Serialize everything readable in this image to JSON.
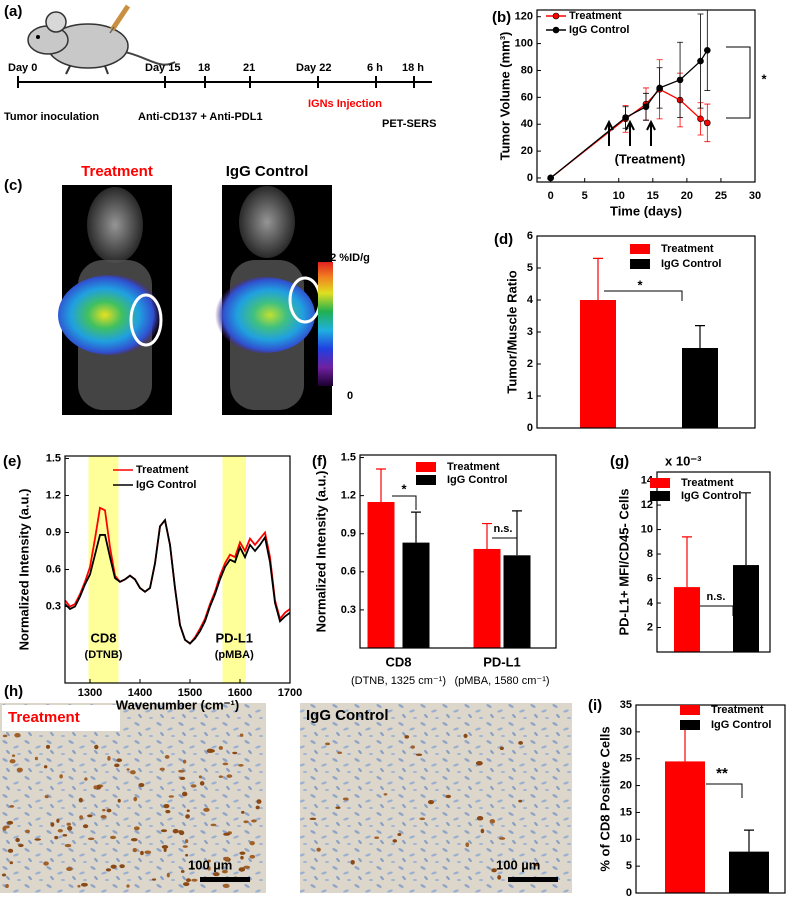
{
  "timeline": {
    "label": "(a)",
    "days": [
      "Day 0",
      "Day 15",
      "18",
      "21",
      "Day 22",
      "6 h",
      "18 h"
    ],
    "steps": [
      "Tumor inoculation",
      "Anti-CD137 + Anti-PDL1",
      "IGNs Injection",
      "PET-SERS"
    ]
  },
  "pet": {
    "label": "(c)",
    "titles": [
      "Treatment",
      "IgG Control"
    ],
    "scale_max": "2 %ID/g",
    "scale_min": "0"
  },
  "histology": {
    "label": "(h)",
    "titles": [
      "Treatment",
      "IgG Control"
    ],
    "scale_bar": "100 µm"
  },
  "chart_data": [
    {
      "type": "line",
      "label": "(b)",
      "xlabel": "Time (days)",
      "ylabel": "Tumor Volume (mm³)",
      "xlim": [
        -2,
        30
      ],
      "ylim": [
        -3,
        125
      ],
      "xticks": [
        0,
        5,
        10,
        15,
        20,
        25,
        30
      ],
      "yticks": [
        0,
        20,
        40,
        60,
        80,
        100,
        120
      ],
      "markers": true,
      "x": [
        0,
        11,
        14,
        16,
        19,
        22,
        23
      ],
      "series": [
        {
          "name": "Treatment",
          "color": "#ff0000",
          "values": [
            0,
            44,
            55,
            66,
            58,
            44,
            41
          ],
          "errors": [
            0,
            10,
            12,
            22,
            20,
            12,
            14
          ]
        },
        {
          "name": "IgG Control",
          "color": "#000000",
          "values": [
            0,
            45,
            53,
            67,
            73,
            87,
            95
          ],
          "errors": [
            0,
            8,
            10,
            15,
            28,
            35,
            30
          ]
        }
      ],
      "significance": [
        "*"
      ],
      "note": "(Treatment)"
    },
    {
      "type": "bar",
      "label": "(d)",
      "ylabel": "Tumor/Muscle Ratio",
      "ylim": [
        0,
        6
      ],
      "yticks": [
        0,
        1,
        2,
        3,
        4,
        5,
        6
      ],
      "series": [
        {
          "name": "Treatment",
          "color": "#ff0000",
          "values": [
            4.0
          ],
          "errors": [
            1.3
          ]
        },
        {
          "name": "IgG Control",
          "color": "#000000",
          "values": [
            2.5
          ],
          "errors": [
            0.7
          ]
        }
      ],
      "significance": [
        "*"
      ]
    },
    {
      "type": "line",
      "label": "(e)",
      "xlabel": "Wavenumber (cm⁻¹)",
      "ylabel": "Normalized Intensity (a.u.)",
      "xlim": [
        1250,
        1700
      ],
      "ylim": [
        -0.32,
        1.52
      ],
      "xticks": [
        1300,
        1400,
        1500,
        1600,
        1700
      ],
      "yticks": [
        0.3,
        0.6,
        0.9,
        1.2,
        1.5
      ],
      "highlights": [
        [
          1297,
          1357
        ],
        [
          1565,
          1612
        ]
      ],
      "band_labels": [
        "CD8",
        "PD-L1"
      ],
      "band_notes": [
        "(DTNB)",
        "(pMBA)"
      ],
      "x": [
        1250,
        1260,
        1270,
        1280,
        1290,
        1300,
        1310,
        1320,
        1330,
        1340,
        1350,
        1360,
        1370,
        1380,
        1390,
        1400,
        1410,
        1420,
        1430,
        1440,
        1450,
        1460,
        1470,
        1480,
        1490,
        1500,
        1510,
        1520,
        1530,
        1540,
        1550,
        1560,
        1570,
        1580,
        1590,
        1600,
        1610,
        1620,
        1630,
        1640,
        1650,
        1660,
        1670,
        1680,
        1690,
        1700
      ],
      "series": [
        {
          "name": "Treatment",
          "color": "#ff0000",
          "values": [
            0.35,
            0.3,
            0.32,
            0.4,
            0.5,
            0.62,
            0.85,
            1.1,
            1.08,
            0.78,
            0.55,
            0.5,
            0.52,
            0.55,
            0.52,
            0.45,
            0.42,
            0.45,
            0.65,
            0.95,
            1.0,
            0.8,
            0.45,
            0.15,
            0.03,
            0.0,
            0.05,
            0.12,
            0.2,
            0.32,
            0.42,
            0.55,
            0.65,
            0.72,
            0.7,
            0.82,
            0.75,
            0.85,
            0.8,
            0.85,
            0.9,
            0.7,
            0.35,
            0.2,
            0.25,
            0.28
          ]
        },
        {
          "name": "IgG Control",
          "color": "#000000",
          "values": [
            0.32,
            0.28,
            0.3,
            0.38,
            0.48,
            0.56,
            0.72,
            0.88,
            0.88,
            0.7,
            0.53,
            0.5,
            0.52,
            0.55,
            0.52,
            0.45,
            0.42,
            0.45,
            0.65,
            0.95,
            1.0,
            0.8,
            0.45,
            0.15,
            0.03,
            0.0,
            0.04,
            0.1,
            0.18,
            0.3,
            0.4,
            0.52,
            0.62,
            0.68,
            0.66,
            0.78,
            0.7,
            0.8,
            0.75,
            0.8,
            0.86,
            0.66,
            0.33,
            0.18,
            0.22,
            0.25
          ]
        }
      ]
    },
    {
      "type": "bar",
      "label": "(f)",
      "ylabel": "Normalized Intensity (a.u.)",
      "ylim": [
        0,
        1.52
      ],
      "yticks": [
        0.3,
        0.6,
        0.9,
        1.2,
        1.5
      ],
      "categories": [
        "CD8",
        "PD-L1"
      ],
      "category_notes": [
        "(DTNB, 1325 cm⁻¹)",
        "(pMBA, 1580 cm⁻¹)"
      ],
      "series": [
        {
          "name": "Treatment",
          "color": "#ff0000",
          "values": [
            1.15,
            0.78
          ],
          "errors": [
            0.26,
            0.2
          ]
        },
        {
          "name": "IgG Control",
          "color": "#000000",
          "values": [
            0.83,
            0.73
          ],
          "errors": [
            0.24,
            0.35
          ]
        }
      ],
      "significance": [
        "*",
        "n.s."
      ]
    },
    {
      "type": "bar",
      "label": "(g)",
      "ylabel": "PD-L1+ MFI/CD45- Cells",
      "multiplier": "x 10⁻³",
      "ylim": [
        0,
        14.7
      ],
      "yticks": [
        2,
        4,
        6,
        8,
        10,
        12,
        14
      ],
      "series": [
        {
          "name": "Treatment",
          "color": "#ff0000",
          "values": [
            5.3
          ],
          "errors": [
            4.1
          ]
        },
        {
          "name": "IgG Control",
          "color": "#000000",
          "values": [
            7.1
          ],
          "errors": [
            5.9
          ]
        }
      ],
      "significance": [
        "n.s."
      ]
    },
    {
      "type": "bar",
      "label": "(i)",
      "ylabel": "% of CD8 Positive Cells",
      "ylim": [
        0,
        35
      ],
      "yticks": [
        0,
        5,
        10,
        15,
        20,
        25,
        30,
        35
      ],
      "series": [
        {
          "name": "Treatment",
          "color": "#ff0000",
          "values": [
            24.5
          ],
          "errors": [
            7.3
          ]
        },
        {
          "name": "IgG Control",
          "color": "#000000",
          "values": [
            7.7
          ],
          "errors": [
            4.0
          ]
        }
      ],
      "significance": [
        "**"
      ]
    }
  ]
}
